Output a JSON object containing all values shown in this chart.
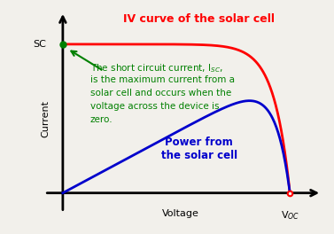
{
  "background_color": "#f2f0eb",
  "iv_curve_color": "#ff0000",
  "power_curve_color": "#0000cc",
  "arrow_color": "#008000",
  "annotation_color": "#008000",
  "title_color": "#ff0000",
  "power_label_color": "#0000cc",
  "isc_dot_color": "#008000",
  "voc_dot_color": "#ff0000",
  "axis_color": "#000000",
  "title": "IV curve of the solar cell",
  "xlabel": "Voltage",
  "ylabel": "Current",
  "isc_label": "SC",
  "voc_label": "V$_{OC}$",
  "annotation_line1": "The short circuit current, I$_{SC}$,",
  "annotation_line2": "is the maximum current from a",
  "annotation_line3": "solar cell and occurs when the",
  "annotation_line4": "voltage across the device is",
  "annotation_line5": "zero.",
  "power_label": "Power from\nthe solar cell",
  "title_fontsize": 9,
  "label_fontsize": 8,
  "annotation_fontsize": 7.5,
  "power_label_fontsize": 8.5,
  "isc_fontsize": 8,
  "voc_fontsize": 8
}
